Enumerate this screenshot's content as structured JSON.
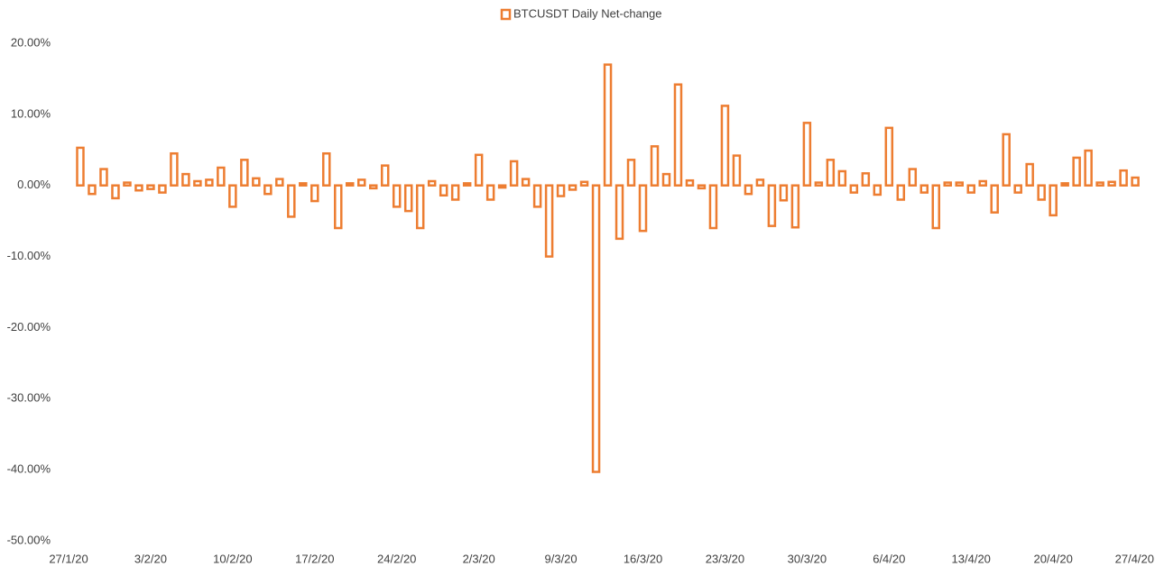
{
  "chart_data": {
    "type": "bar",
    "categories": [
      "27/1/20",
      null,
      null,
      null,
      null,
      null,
      null,
      "3/2/20",
      null,
      null,
      null,
      null,
      null,
      null,
      "10/2/20",
      null,
      null,
      null,
      null,
      null,
      null,
      "17/2/20",
      null,
      null,
      null,
      null,
      null,
      null,
      "24/2/20",
      null,
      null,
      null,
      null,
      null,
      null,
      "2/3/20",
      null,
      null,
      null,
      null,
      null,
      null,
      "9/3/20",
      null,
      null,
      null,
      null,
      null,
      null,
      "16/3/20",
      null,
      null,
      null,
      null,
      null,
      null,
      "23/3/20",
      null,
      null,
      null,
      null,
      null,
      null,
      "30/3/20",
      null,
      null,
      null,
      null,
      null,
      null,
      "6/4/20",
      null,
      null,
      null,
      null,
      null,
      null,
      "13/4/20",
      null,
      null,
      null,
      null,
      null,
      null,
      "20/4/20",
      null,
      null,
      null,
      null,
      null,
      null,
      "27/4/20"
    ],
    "series": [
      {
        "name": "BTCUSDT Daily Net-change",
        "color": "#ed7d31",
        "values": [
          null,
          5.3,
          -1.2,
          2.3,
          -1.8,
          0.4,
          -0.7,
          -0.5,
          -1.0,
          4.5,
          1.6,
          0.6,
          0.8,
          2.5,
          -3.0,
          3.6,
          1.0,
          -1.2,
          0.9,
          -4.4,
          0.3,
          -2.2,
          4.5,
          -6.0,
          0.3,
          0.8,
          -0.4,
          2.8,
          -3.0,
          -3.6,
          -6.0,
          0.6,
          -1.4,
          -2.0,
          0.3,
          4.3,
          -2.0,
          -0.3,
          3.4,
          0.9,
          -3.0,
          -10.0,
          -1.5,
          -0.6,
          0.5,
          -40.3,
          17.0,
          -7.5,
          3.6,
          -6.4,
          5.5,
          1.6,
          14.2,
          0.7,
          -0.4,
          -6.0,
          11.2,
          4.2,
          -1.2,
          0.8,
          -5.7,
          -2.1,
          -5.9,
          8.8,
          0.4,
          3.6,
          2.0,
          -1.0,
          1.7,
          -1.3,
          8.1,
          -2.0,
          2.3,
          -1.0,
          -6.0,
          0.4,
          0.4,
          -1.0,
          0.6,
          -3.8,
          7.2,
          -1.0,
          3.0,
          -2.0,
          -4.2,
          0.3,
          3.9,
          4.9,
          0.4,
          0.5,
          2.1,
          1.1
        ]
      }
    ],
    "ylim": [
      -50,
      20
    ],
    "yticks": [
      {
        "value": -50,
        "label": "-50.00%"
      },
      {
        "value": -40,
        "label": "-40.00%"
      },
      {
        "value": -30,
        "label": "-30.00%"
      },
      {
        "value": -20,
        "label": "-20.00%"
      },
      {
        "value": -10,
        "label": "-10.00%"
      },
      {
        "value": 0,
        "label": "0.00%"
      },
      {
        "value": 10,
        "label": "10.00%"
      },
      {
        "value": 20,
        "label": "20.00%"
      }
    ],
    "grid": false,
    "legend": "top"
  }
}
